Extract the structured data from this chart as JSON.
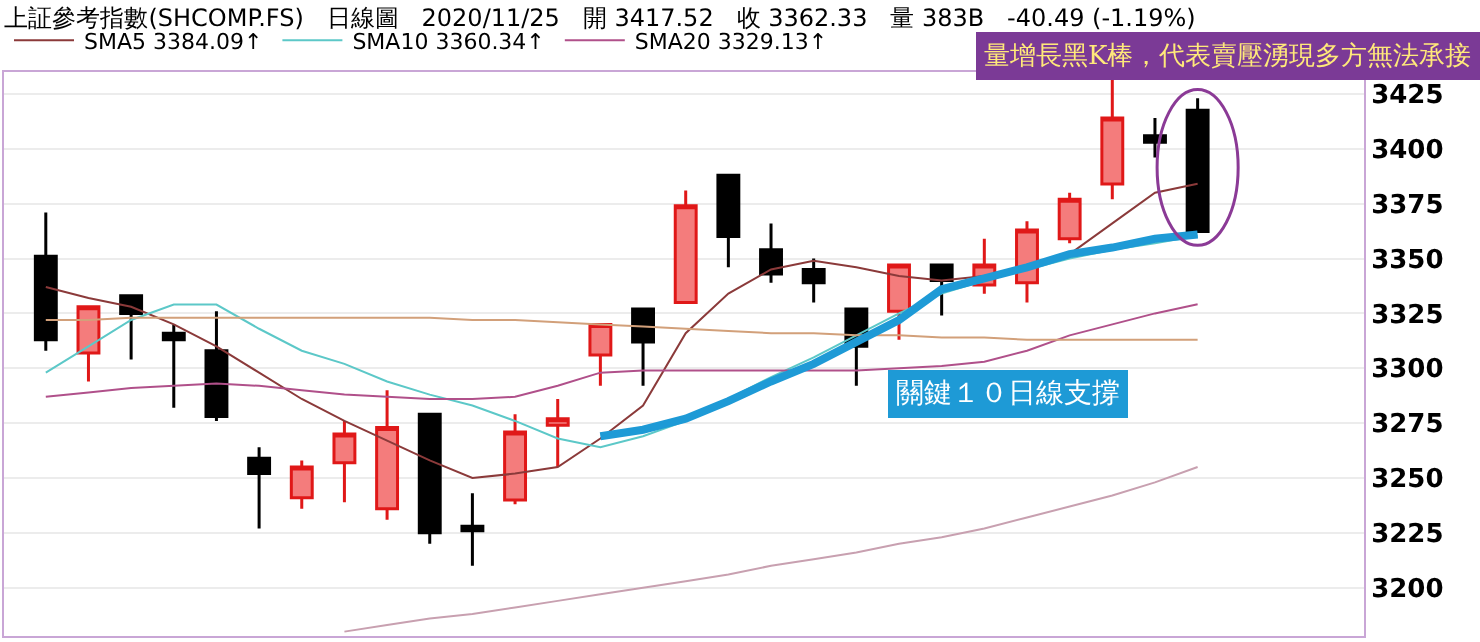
{
  "chart_data": {
    "type": "candlestick",
    "title": "上証參考指數(SHCOMP.FS)   日線圖   2020/11/25   開 3417.52   收 3362.33   量 383B   -40.49 (-1.19%)",
    "categories": [
      null,
      null,
      null,
      null,
      null,
      null,
      null,
      null,
      null,
      null,
      null,
      null,
      null,
      null,
      null,
      null,
      null,
      null,
      null,
      null,
      null,
      null,
      null,
      null,
      null,
      null,
      null,
      null
    ],
    "ohlc": [
      [
        3351,
        3371,
        3308,
        3313
      ],
      [
        3307,
        3328,
        3294,
        3328
      ],
      [
        3333,
        3333,
        3304,
        3325
      ],
      [
        3316,
        3320,
        3282,
        3313
      ],
      [
        3308,
        3326,
        3276,
        3278
      ],
      [
        3259,
        3264,
        3227,
        3252
      ],
      [
        3241,
        3258,
        3236,
        3255
      ],
      [
        3257,
        3276,
        3239,
        3270
      ],
      [
        3236,
        3290,
        3231,
        3273
      ],
      [
        3279,
        3279,
        3220,
        3225
      ],
      [
        3228,
        3243,
        3210,
        3226
      ],
      [
        3240,
        3279,
        3238,
        3271
      ],
      [
        3274,
        3286,
        3255,
        3277
      ],
      [
        3306,
        3320,
        3292,
        3320
      ],
      [
        3327,
        3327,
        3292,
        3312
      ],
      [
        3330,
        3381,
        3330,
        3374
      ],
      [
        3388,
        3388,
        3346,
        3360
      ],
      [
        3354,
        3366,
        3339,
        3343
      ],
      [
        3345,
        3350,
        3330,
        3339
      ],
      [
        3327,
        3327,
        3292,
        3310
      ],
      [
        3326,
        3347,
        3313,
        3347
      ],
      [
        3347,
        3347,
        3324,
        3340
      ],
      [
        3338,
        3359,
        3334,
        3347
      ],
      [
        3339,
        3367,
        3330,
        3363
      ],
      [
        3359,
        3380,
        3357,
        3377
      ],
      [
        3384,
        3432,
        3377,
        3414
      ],
      [
        3406,
        3414,
        3396,
        3403
      ],
      [
        3417.52,
        3423,
        3362,
        3362.33
      ]
    ],
    "series": [
      {
        "name": "SMA5 3384.09↑",
        "type": "line",
        "color": "#8b3a3a",
        "values": [
          3337,
          3332,
          3328,
          3320,
          3310,
          3298,
          3286,
          3276,
          3267,
          3258,
          3250,
          3252,
          3255,
          3268,
          3283,
          3316,
          3334,
          3345,
          3349,
          3346,
          3342,
          3340,
          3342,
          3346,
          3352,
          3366,
          3380,
          3384.09
        ]
      },
      {
        "name": "SMA10 3360.34↑",
        "type": "line",
        "color": "#5cc8c8",
        "values": [
          3298,
          3310,
          3322,
          3329,
          3329,
          3318,
          3308,
          3302,
          3294,
          3288,
          3283,
          3276,
          3268,
          3264,
          3269,
          3276,
          3286,
          3296,
          3305,
          3315,
          3325,
          3334,
          3340,
          3345,
          3350,
          3354,
          3357,
          3360.34
        ]
      },
      {
        "name": "SMA20 3329.13↑",
        "type": "line",
        "color": "#b0508a",
        "values": [
          3287,
          3289,
          3291,
          3292,
          3293,
          3292,
          3290,
          3288,
          3287,
          3286,
          3286,
          3287,
          3292,
          3298,
          3299,
          3299,
          3299,
          3299,
          3299,
          3299,
          3300,
          3301,
          3303,
          3308,
          3315,
          3320,
          3325,
          3329.13
        ]
      },
      {
        "type": "line",
        "color": "#d2a07a",
        "values": [
          3322,
          3322,
          3323,
          3323,
          3323,
          3323,
          3323,
          3323,
          3323,
          3323,
          3322,
          3322,
          3321,
          3320,
          3319,
          3318,
          3317,
          3316,
          3316,
          3315,
          3315,
          3314,
          3314,
          3313,
          3313,
          3313,
          3313,
          3313
        ]
      },
      {
        "type": "line",
        "color": "#c8a0b0",
        "values": [
          null,
          null,
          null,
          null,
          null,
          null,
          null,
          3180,
          3183,
          3186,
          3188,
          3191,
          3194,
          3197,
          3200,
          3203,
          3206,
          3210,
          3213,
          3216,
          3220,
          3223,
          3227,
          3232,
          3237,
          3242,
          3248,
          3255
        ]
      },
      {
        "type": "line",
        "color": "#1e9ad6",
        "values": [
          null,
          null,
          null,
          null,
          null,
          null,
          null,
          null,
          null,
          null,
          null,
          null,
          null,
          3269,
          3272,
          3277,
          3285,
          3294,
          3302,
          3312,
          3322,
          3336,
          3341,
          3346,
          3352,
          3355,
          3359,
          3361
        ]
      }
    ],
    "ylim": [
      3178,
      3435
    ],
    "yticks": [
      3200,
      3225,
      3250,
      3275,
      3300,
      3325,
      3350,
      3375,
      3400,
      3425
    ],
    "grid": "y",
    "legend": "top left",
    "tick_labels": "y",
    "annotations": [
      "量增長黑K棒，代表賣壓湧現多方無法承接",
      "關鍵１０日線支撐"
    ]
  }
}
